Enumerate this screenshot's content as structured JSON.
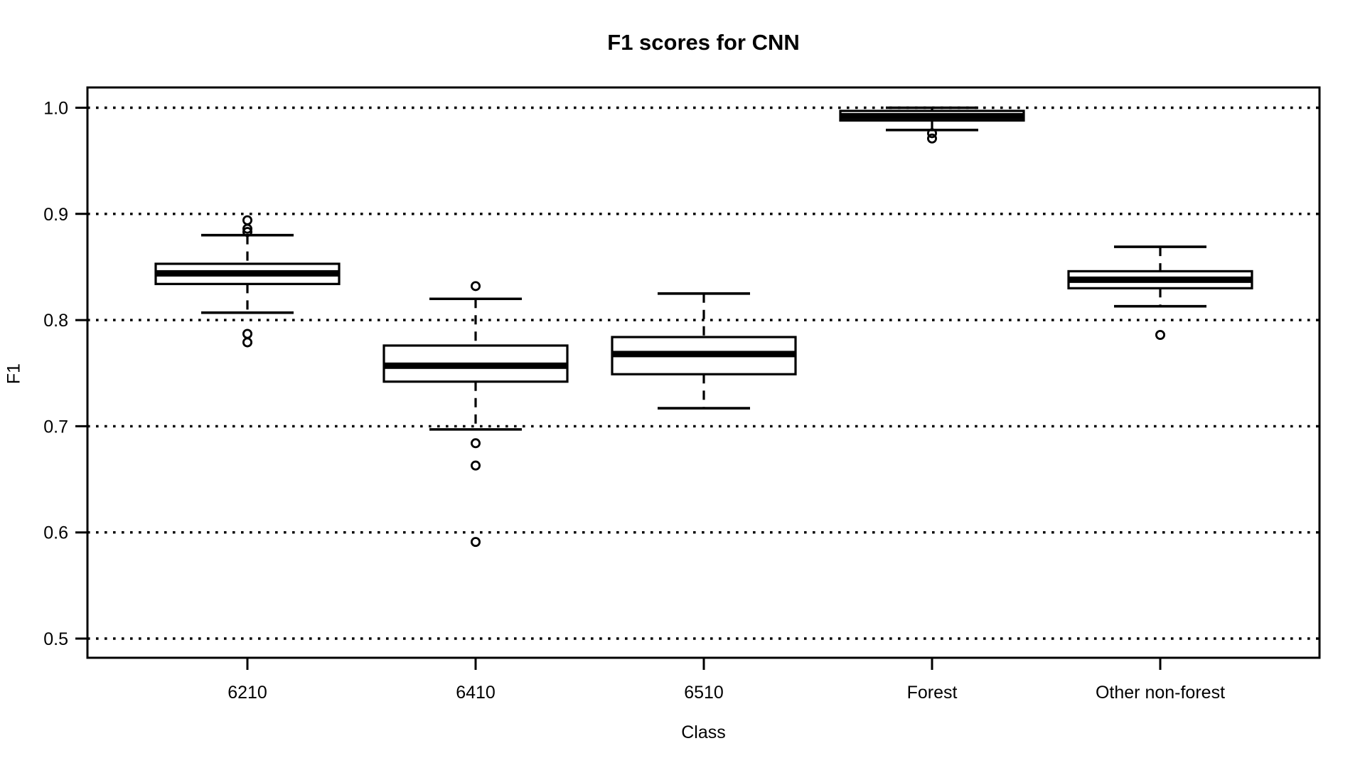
{
  "chart_data": {
    "type": "boxplot",
    "title": "F1 scores for CNN",
    "xlabel": "Class",
    "ylabel": "F1",
    "categories": [
      "6210",
      "6410",
      "6510",
      "Forest",
      "Other non-forest"
    ],
    "y_tick_values": [
      1.0,
      0.9,
      0.8,
      0.7,
      0.6,
      0.5
    ],
    "y_tick_labels": [
      "1.0",
      "0.9",
      "0.8",
      "0.7",
      "0.6",
      "0.5"
    ],
    "ylim": [
      0.48,
      1.02
    ],
    "grid": "horizontal dotted black line at every y tick",
    "legend_position": "none",
    "series": [
      {
        "category": "6210",
        "q1": 0.834,
        "median": 0.844,
        "q3": 0.853,
        "whisker_low": 0.807,
        "whisker_high": 0.88,
        "outliers": [
          0.894,
          0.886,
          0.883,
          0.787,
          0.779
        ]
      },
      {
        "category": "6410",
        "q1": 0.742,
        "median": 0.757,
        "q3": 0.776,
        "whisker_low": 0.697,
        "whisker_high": 0.82,
        "outliers": [
          0.832,
          0.684,
          0.663,
          0.591
        ]
      },
      {
        "category": "6510",
        "q1": 0.749,
        "median": 0.768,
        "q3": 0.784,
        "whisker_low": 0.717,
        "whisker_high": 0.825,
        "outliers": []
      },
      {
        "category": "Forest",
        "q1": 0.988,
        "median": 0.992,
        "q3": 0.997,
        "whisker_low": 0.979,
        "whisker_high": 1.0,
        "outliers": [
          0.976,
          0.971
        ]
      },
      {
        "category": "Other non-forest",
        "q1": 0.83,
        "median": 0.838,
        "q3": 0.846,
        "whisker_low": 0.813,
        "whisker_high": 0.869,
        "outliers": [
          0.786
        ]
      }
    ],
    "colors": {
      "stroke": "#000000",
      "box_fill": "#ffffff",
      "median_fill": "#000000",
      "background": "#ffffff"
    }
  }
}
